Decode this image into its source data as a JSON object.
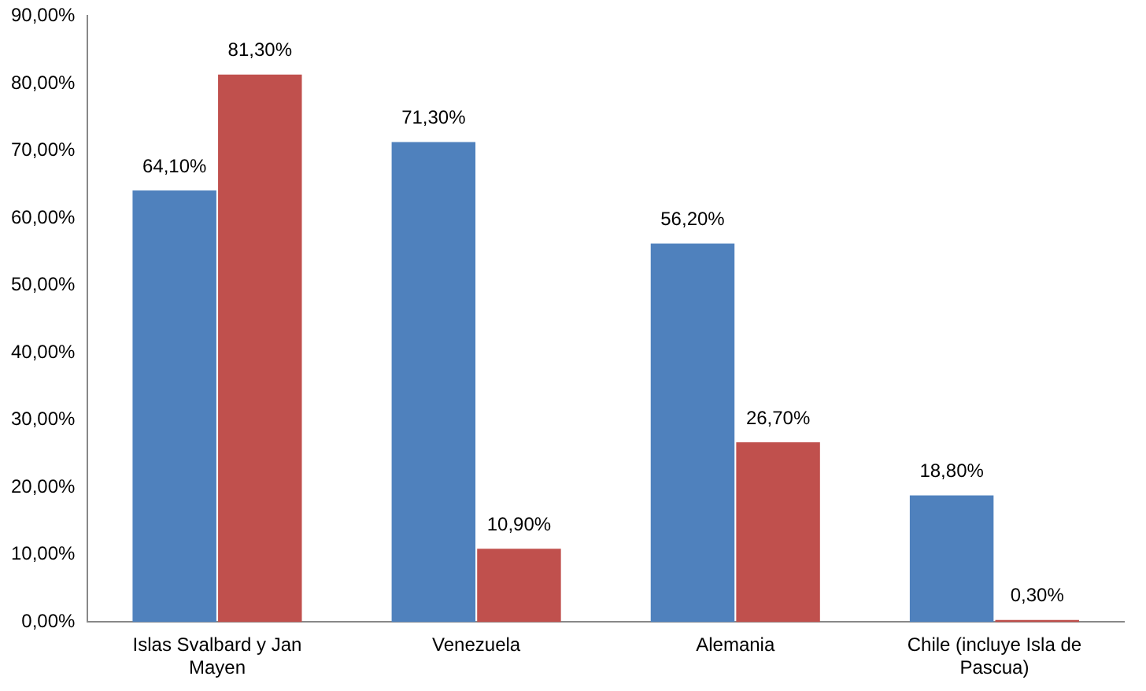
{
  "chart_data": {
    "type": "bar",
    "categories": [
      "Islas Svalbard y Jan Mayen",
      "Venezuela",
      "Alemania",
      "Chile (incluye Isla de Pascua)"
    ],
    "series": [
      {
        "color": "#4f81bd",
        "values": [
          64.1,
          71.3,
          56.2,
          18.8
        ],
        "value_labels": [
          "64,10%",
          "71,30%",
          "56,20%",
          "18,80%"
        ]
      },
      {
        "color": "#c0504d",
        "values": [
          81.3,
          10.9,
          26.7,
          0.3
        ],
        "value_labels": [
          "81,30%",
          "10,90%",
          "26,70%",
          "0,30%"
        ]
      }
    ],
    "ylim": [
      0,
      90
    ],
    "yticks": [
      {
        "value": 0,
        "label": "0,00%"
      },
      {
        "value": 10,
        "label": "10,00%"
      },
      {
        "value": 20,
        "label": "20,00%"
      },
      {
        "value": 30,
        "label": "30,00%"
      },
      {
        "value": 40,
        "label": "40,00%"
      },
      {
        "value": 50,
        "label": "50,00%"
      },
      {
        "value": 60,
        "label": "60,00%"
      },
      {
        "value": 70,
        "label": "70,00%"
      },
      {
        "value": 80,
        "label": "80,00%"
      },
      {
        "value": 90,
        "label": "90,00%"
      }
    ],
    "grid": false,
    "legend": false
  }
}
